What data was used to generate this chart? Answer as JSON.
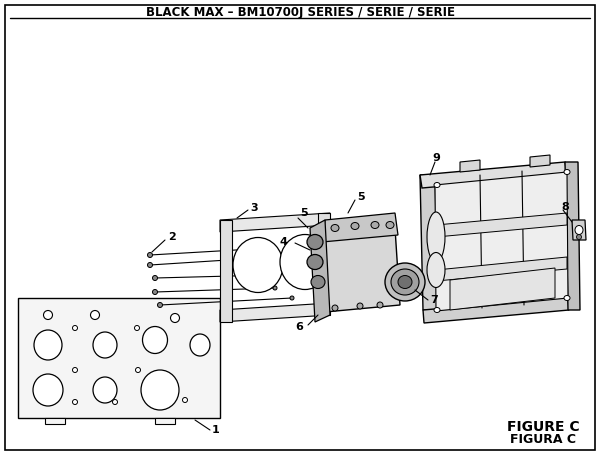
{
  "title": "BLACK MAX – BM10700J SERIES / SÉRIE / SERIE",
  "figure_label": "FIGURE C",
  "figure_label2": "FIGURA C",
  "bg_color": "#ffffff",
  "border_color": "#000000",
  "text_color": "#000000",
  "title_fontsize": 8.5,
  "label_fontsize": 8,
  "figure_label_fontsize": 10
}
